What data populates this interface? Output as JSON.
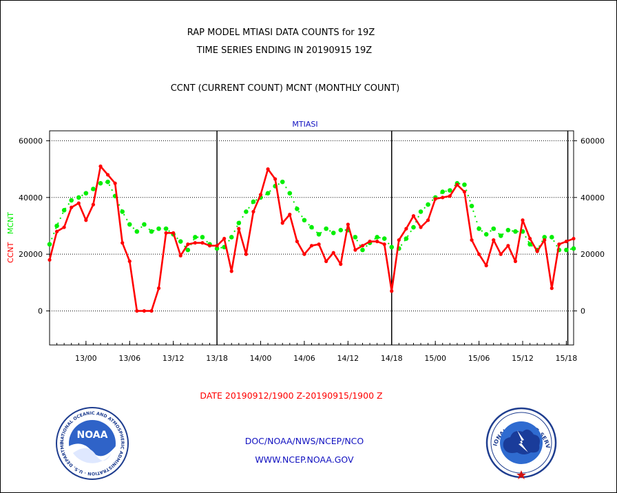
{
  "chart_data": {
    "type": "line",
    "title_lines": [
      "RAP MODEL MTIASI DATA COUNTS for 19Z",
      "TIME SERIES ENDING IN 20190915 19Z"
    ],
    "subtitle": "CCNT (CURRENT COUNT) MCNT (MONTHLY COUNT)",
    "panel_label": "MTIASI",
    "ylabel_left_ccnt": "CCNT",
    "ylabel_left_mcnt": "MCNT",
    "xlabel": "DATE 20190912/1900 Z-20190915/1900 Z",
    "ylim": [
      -12000,
      63500
    ],
    "xlim_hours": [
      0,
      72
    ],
    "y_ticks": [
      0,
      20000,
      40000,
      60000
    ],
    "x_ticks": [
      {
        "hour": 5,
        "label": "13/00"
      },
      {
        "hour": 11,
        "label": "13/06"
      },
      {
        "hour": 17,
        "label": "13/12"
      },
      {
        "hour": 23,
        "label": "13/18"
      },
      {
        "hour": 29,
        "label": "14/00"
      },
      {
        "hour": 35,
        "label": "14/06"
      },
      {
        "hour": 41,
        "label": "14/12"
      },
      {
        "hour": 47,
        "label": "14/18"
      },
      {
        "hour": 53,
        "label": "15/00"
      },
      {
        "hour": 59,
        "label": "15/06"
      },
      {
        "hour": 65,
        "label": "15/12"
      },
      {
        "hour": 71,
        "label": "15/18"
      }
    ],
    "day_boundary_hours": [
      23,
      47,
      71.2
    ],
    "series": [
      {
        "name": "CCNT",
        "color": "#ff0000",
        "values": [
          18000,
          28000,
          29500,
          36500,
          38000,
          32000,
          37500,
          51000,
          48000,
          45000,
          24000,
          17500,
          0,
          0,
          0,
          8000,
          27500,
          27500,
          19500,
          23500,
          24000,
          24000,
          23000,
          23000,
          25500,
          14000,
          29000,
          20000,
          35000,
          41000,
          50000,
          46500,
          31000,
          34000,
          24500,
          20000,
          23000,
          23500,
          17500,
          20500,
          16500,
          30500,
          21500,
          23000,
          24500,
          24500,
          23500,
          7000,
          25000,
          29000,
          33500,
          29500,
          32000,
          39500,
          40000,
          40500,
          44500,
          42000,
          25000,
          20000,
          16000,
          25000,
          20000,
          23000,
          17500,
          32000,
          25500,
          21000,
          25000,
          8000,
          23500,
          24500,
          25500
        ]
      },
      {
        "name": "MCNT",
        "color": "#00ee00",
        "values": [
          23500,
          30000,
          35500,
          39000,
          40000,
          41500,
          43000,
          45000,
          45500,
          40500,
          35000,
          30500,
          28000,
          30500,
          28000,
          29000,
          29000,
          27000,
          24500,
          21500,
          26000,
          26000,
          23500,
          22000,
          22500,
          26000,
          31000,
          35000,
          38500,
          40000,
          41500,
          44000,
          45500,
          41500,
          36000,
          32000,
          29500,
          27000,
          29000,
          27500,
          28500,
          28500,
          26000,
          21500,
          24000,
          26000,
          25500,
          22500,
          22000,
          25500,
          29500,
          35000,
          37500,
          40000,
          42000,
          42500,
          45000,
          44500,
          37000,
          29000,
          27000,
          29000,
          26500,
          28500,
          28000,
          28000,
          23500,
          21500,
          26000,
          26000,
          21500,
          21500,
          22000
        ]
      }
    ],
    "footer": {
      "agency": "DOC/NOAA/NWS/NCEP/NCO",
      "website": "WWW.NCEP.NOAA.GOV"
    },
    "logos": {
      "left": {
        "icon": "noaa-logo",
        "text": "NOAA",
        "ring_text": "NATIONAL OCEANIC AND ATMOSPHERIC ADMINISTRATION · U.S. DEPARTMENT OF COMMERCE"
      },
      "right": {
        "icon": "nws-logo",
        "ring_text": "NATIONAL WEATHER SERVICE"
      }
    },
    "colors": {
      "ccnt": "#ff0000",
      "mcnt": "#00ee00",
      "text_blue": "#1010c0",
      "axis": "#000000"
    }
  }
}
